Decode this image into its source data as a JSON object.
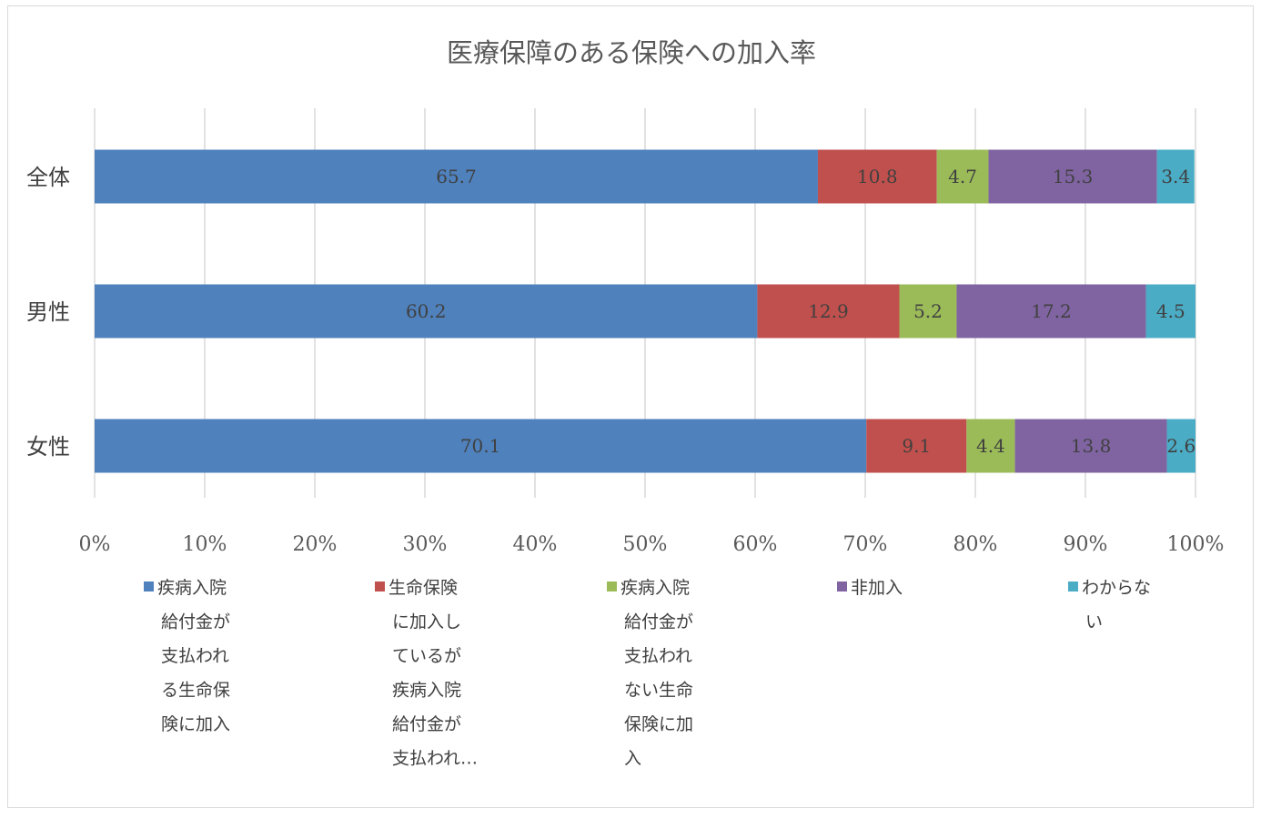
{
  "chart_data": {
    "type": "bar",
    "orientation": "horizontal",
    "stacked": "percent",
    "title": "医療保障のある保険への加入率",
    "categories": [
      "全体",
      "男性",
      "女性"
    ],
    "series": [
      {
        "name": "疾病入院給付金が支払われる生命保険に加入",
        "values": [
          65.7,
          60.2,
          70.1
        ],
        "color": "#4f81bd"
      },
      {
        "name": "生命保険に加入しているが疾病入院給付金が支払われ…",
        "values": [
          10.8,
          12.9,
          9.1
        ],
        "color": "#c0504d"
      },
      {
        "name": "疾病入院給付金が支払われない生命保険に加入",
        "values": [
          4.7,
          5.2,
          4.4
        ],
        "color": "#9bbb59"
      },
      {
        "name": "非加入",
        "values": [
          15.3,
          17.2,
          13.8
        ],
        "color": "#8064a2"
      },
      {
        "name": "わからない",
        "values": [
          3.4,
          4.5,
          2.6
        ],
        "color": "#4bacc6"
      }
    ],
    "xlim": [
      0,
      100
    ],
    "xticks": [
      "0%",
      "10%",
      "20%",
      "30%",
      "40%",
      "50%",
      "60%",
      "70%",
      "80%",
      "90%",
      "100%"
    ],
    "grid": "vertical",
    "legend_position": "bottom",
    "legend_lines": [
      [
        "疾病入院",
        "給付金が",
        "支払われ",
        "る生命保",
        "険に加入"
      ],
      [
        "生命保険",
        "に加入し",
        "ているが",
        "疾病入院",
        "給付金が",
        "支払われ…"
      ],
      [
        "疾病入院",
        "給付金が",
        "支払われ",
        "ない生命",
        "保険に加",
        "入"
      ],
      [
        "非加入"
      ],
      [
        "わからな",
        "い"
      ]
    ]
  }
}
